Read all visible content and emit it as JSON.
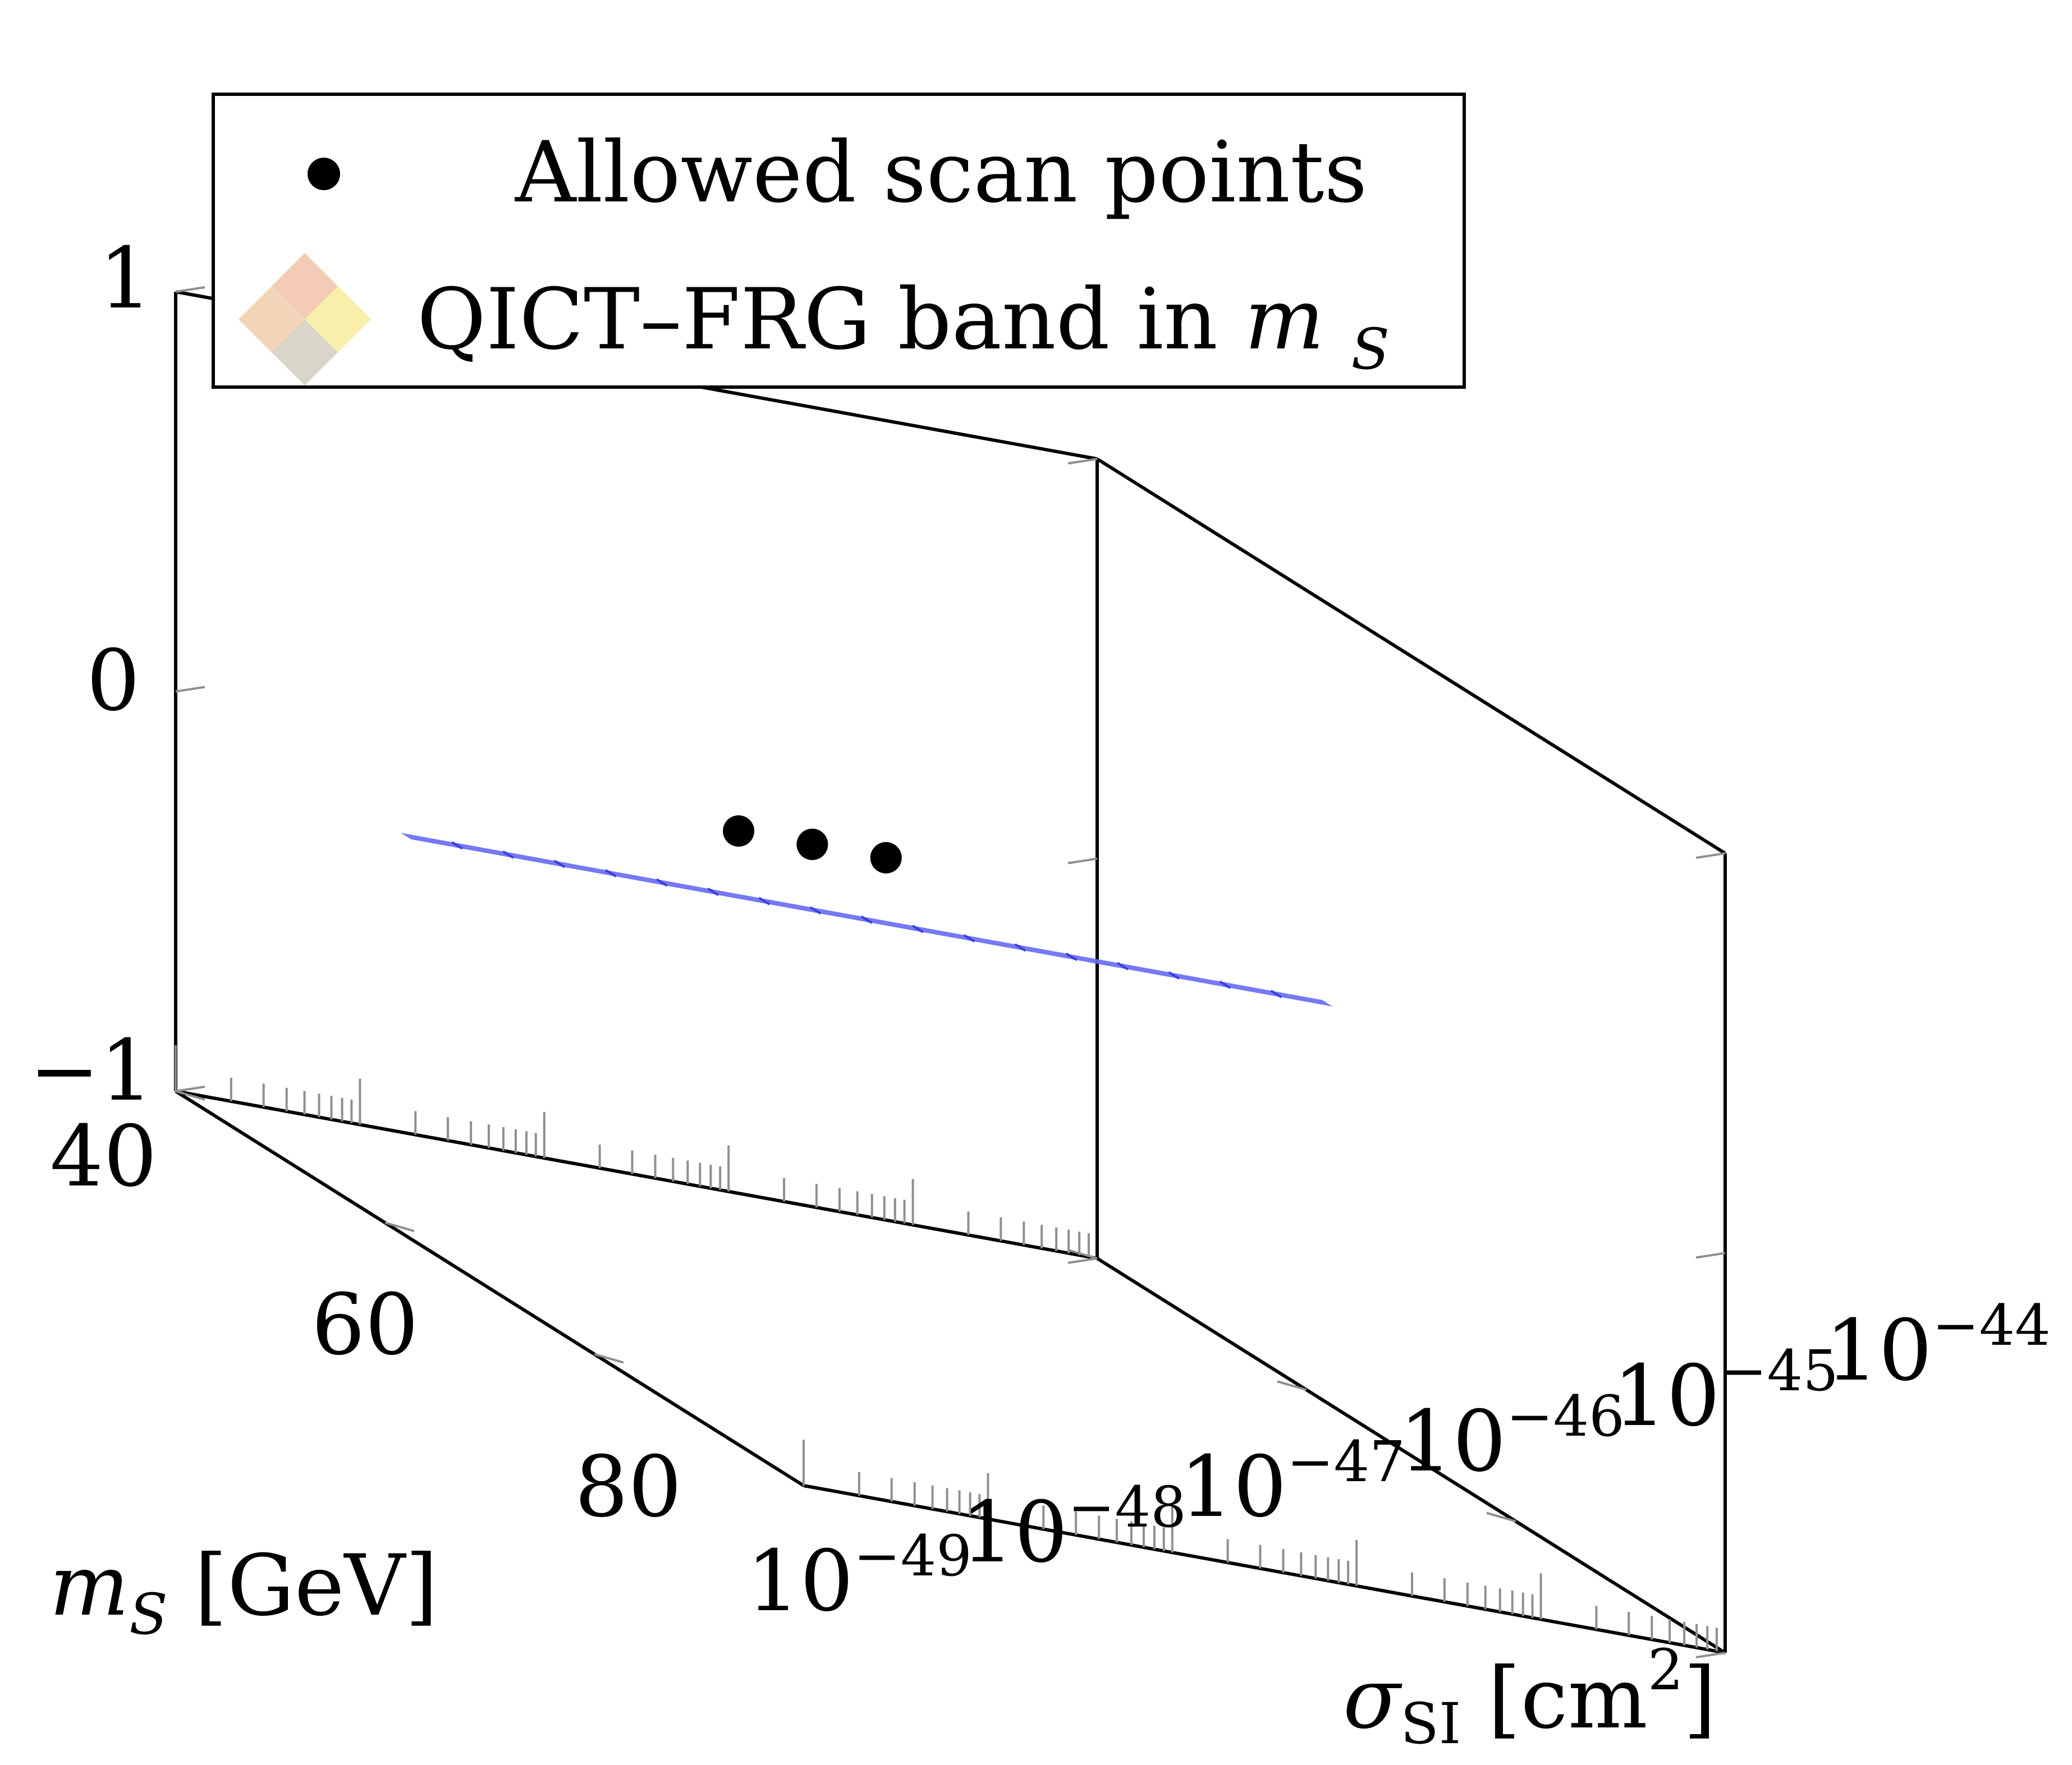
{
  "chart_data": {
    "type": "scatter",
    "title": "",
    "axes": {
      "x": {
        "label": "σ_SI [cm²]",
        "label_main": "σ",
        "label_sub": "SI",
        "label_unit": "[cm",
        "label_unit_exp": "2",
        "label_unit_tail": "]",
        "scale": "log",
        "range": [
          1e-49,
          1e-44
        ],
        "tick_labels": [
          "10",
          "10",
          "10",
          "10",
          "10",
          "10"
        ],
        "tick_exponents": [
          "−49",
          "−48",
          "−47",
          "−46",
          "−45",
          "−44"
        ],
        "tick_values": [
          -49,
          -48,
          -47,
          -46,
          -45,
          -44
        ]
      },
      "y": {
        "label": "m_S [GeV]",
        "label_main": "m",
        "label_sub": "S",
        "label_unit": "[GeV]",
        "scale": "linear",
        "range": [
          40,
          100
        ],
        "tick_labels": [
          "40",
          "60",
          "80"
        ],
        "tick_values": [
          40,
          60,
          80
        ]
      },
      "z": {
        "label": "",
        "scale": "linear",
        "range": [
          -1,
          1
        ],
        "tick_labels": [
          "−1",
          "0",
          "1"
        ],
        "tick_values": [
          -1,
          0,
          1
        ]
      }
    },
    "series": [
      {
        "name": "Allowed scan points",
        "type": "scatter",
        "color": "#000000",
        "points": [
          {
            "log10_x": -46.4,
            "y": 48.0,
            "z": 0
          },
          {
            "log10_x": -46.0,
            "y": 48.0,
            "z": 0
          },
          {
            "log10_x": -45.6,
            "y": 48.0,
            "z": 0
          }
        ]
      },
      {
        "name": "QICT–FRG band in m_S",
        "type": "band",
        "color": "#6a6ef2",
        "stroke": "#2f33d9",
        "log10_x_range": [
          -49,
          -44
        ],
        "y_range": [
          61.5,
          62.5
        ],
        "z": 0,
        "segments": 18
      }
    ],
    "legend": {
      "position": "top-left",
      "entries": [
        {
          "label": "Allowed scan points",
          "marker": "dot"
        },
        {
          "label_main": "QICT–FRG band in ",
          "label_var": "m",
          "label_sub": "S",
          "marker": "surface"
        }
      ]
    },
    "grid": false
  }
}
